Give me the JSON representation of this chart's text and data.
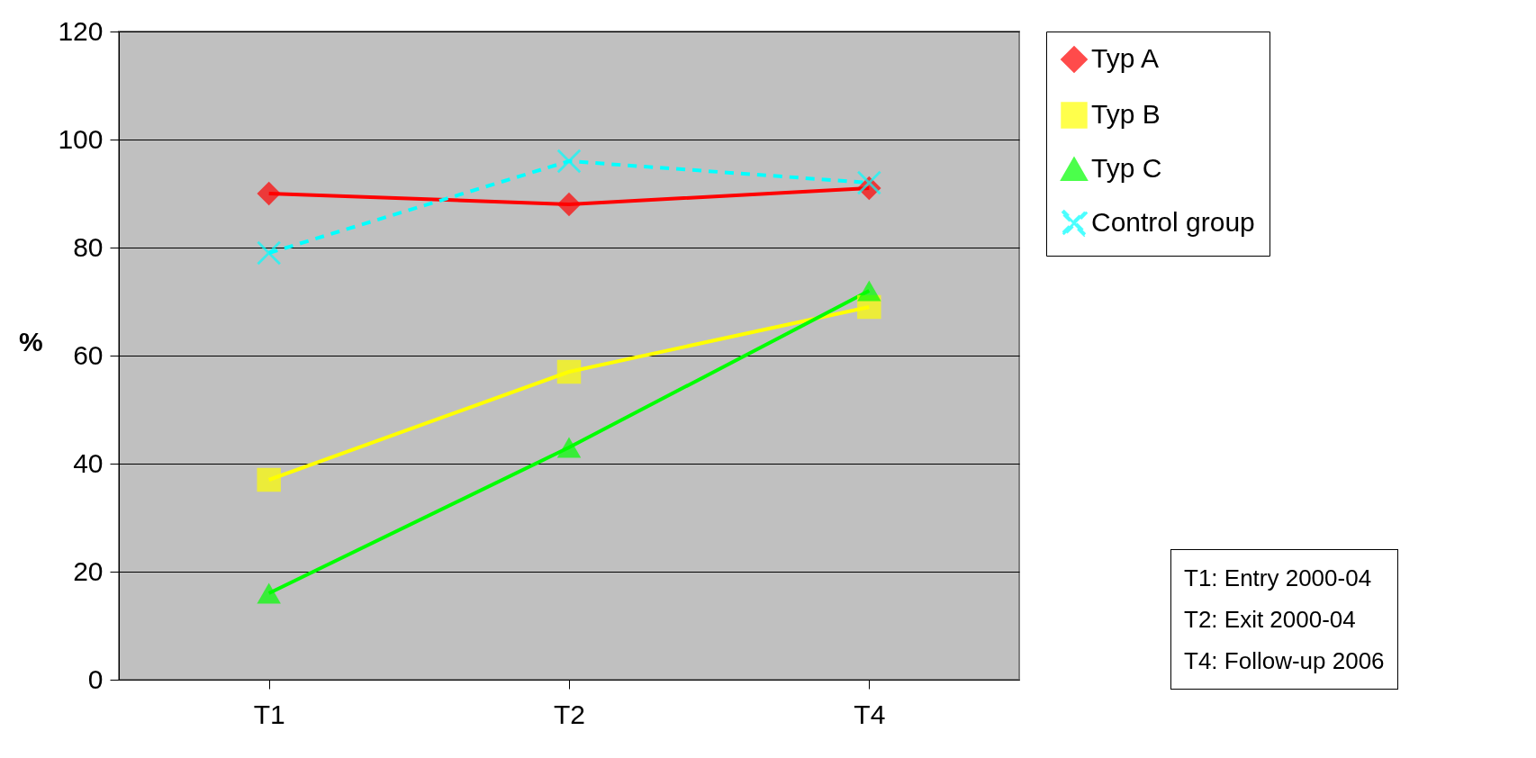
{
  "chart_data": {
    "type": "line",
    "ylabel": "%",
    "categories": [
      "T1",
      "T2",
      "T4"
    ],
    "series": [
      {
        "name": "Typ A",
        "color": "#ff0000",
        "values": [
          90,
          88,
          91
        ],
        "marker": "diamond",
        "line_style": "solid"
      },
      {
        "name": "Typ B",
        "color": "#ffff00",
        "values": [
          37,
          57,
          69
        ],
        "marker": "square",
        "line_style": "solid"
      },
      {
        "name": "Typ C",
        "color": "#00ff00",
        "values": [
          16,
          43,
          72
        ],
        "marker": "triangle",
        "line_style": "solid"
      },
      {
        "name": "Control group",
        "color": "#00ffff",
        "values": [
          79,
          96,
          92
        ],
        "marker": "cross",
        "line_style": "dashed"
      }
    ],
    "ylim": [
      0,
      120
    ],
    "yticks": [
      0,
      20,
      40,
      60,
      80,
      100,
      120
    ],
    "grid": "y",
    "legend": "right",
    "annotations": [
      "T1: Entry 2000-04",
      "T2: Exit 2000-04",
      "T4: Follow-up 2006"
    ]
  }
}
